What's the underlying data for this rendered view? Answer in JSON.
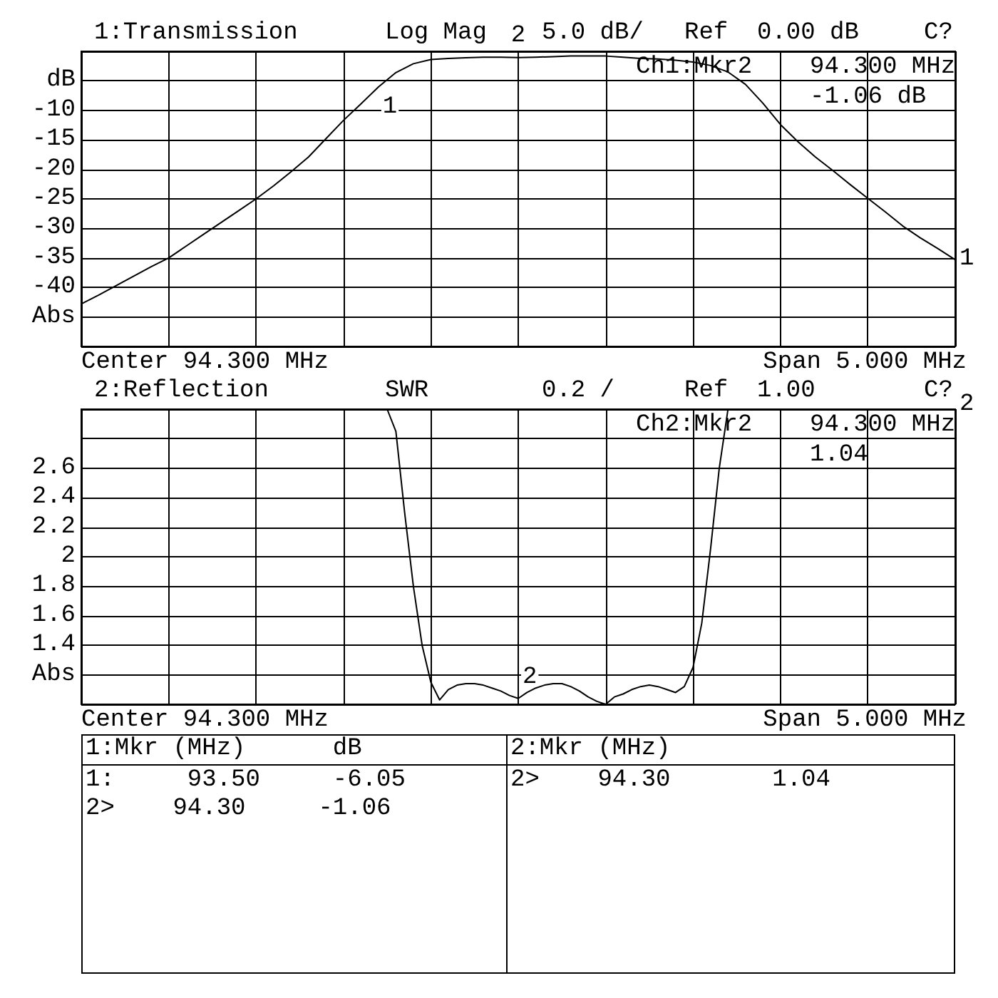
{
  "chart_data": [
    {
      "type": "line",
      "title": "1:Transmission",
      "categories": [
        null,
        null,
        null,
        null,
        null,
        null,
        null,
        null,
        null,
        null,
        null,
        null,
        null,
        null,
        null,
        null,
        null,
        null,
        null,
        null,
        null,
        null,
        null,
        null,
        null,
        null,
        null,
        null,
        null,
        null,
        null,
        null,
        null,
        null,
        null,
        null,
        null,
        null,
        null,
        null,
        null,
        null,
        null,
        null,
        null,
        null,
        null,
        null,
        null,
        null,
        null
      ],
      "ylim": [
        -50,
        0
      ],
      "yticks": [
        {
          "value": 0,
          "label": null
        },
        {
          "value": -5,
          "label": "dB"
        },
        -10,
        -15,
        -20,
        -25,
        -30,
        -35,
        -40,
        {
          "value": -45,
          "label": "Abs"
        },
        {
          "value": -50,
          "label": null
        }
      ],
      "tick_labels": "y",
      "grid": true,
      "series": [
        {
          "color": "#000000",
          "values": [
            -42.8,
            -41.3,
            -39.7,
            -38.1,
            -36.5,
            -35.0,
            -33.0,
            -31.0,
            -29.0,
            -27.0,
            -25.0,
            -22.8,
            -20.4,
            -17.9,
            -14.8,
            -11.7,
            -8.9,
            -6.05,
            -3.6,
            -2.1,
            -1.4,
            -1.2,
            -1.1,
            -1.0,
            -1.0,
            -1.06,
            -1.0,
            -0.9,
            -0.8,
            -0.8,
            -0.8,
            -1.0,
            -1.2,
            -1.3,
            -1.5,
            -1.8,
            -2.4,
            -3.5,
            -5.6,
            -8.8,
            -12.4,
            -15.3,
            -17.9,
            -20.2,
            -22.6,
            -24.9,
            -27.2,
            -29.6,
            -31.6,
            -33.4,
            -35.3
          ]
        }
      ],
      "annotations": [
        "Log Mag",
        "5.0 dB/",
        "Ref  0.00 dB",
        "C?",
        "Ch1:Mkr2",
        "94.300 MHz",
        "-1.06 dB",
        "Center 94.300 MHz",
        "Span 5.000 MHz",
        "1",
        {
          "text": "1",
          "y": -6.05
        },
        {
          "text": "2",
          "y": -1.06
        }
      ]
    },
    {
      "type": "line",
      "title": "2:Reflection",
      "categories": [
        null,
        null,
        null,
        null,
        null,
        null,
        null,
        null,
        null,
        null,
        null,
        null,
        null,
        null,
        null,
        null,
        null,
        null,
        null,
        null,
        null,
        null,
        null,
        null,
        null,
        null,
        null,
        null,
        null,
        null,
        null,
        null,
        null,
        null,
        null,
        null,
        null,
        null,
        null,
        null,
        null,
        null,
        null,
        null,
        null,
        null,
        null,
        null,
        null,
        null,
        null,
        null,
        null,
        null,
        null,
        null,
        null,
        null,
        null,
        null,
        null,
        null,
        null,
        null,
        null,
        null,
        null,
        null,
        null,
        null,
        null,
        null,
        null,
        null,
        null,
        null,
        null,
        null,
        null,
        null,
        null,
        null,
        null,
        null,
        null,
        null,
        null,
        null,
        null,
        null,
        null,
        null,
        null,
        null,
        null,
        null,
        null,
        null,
        null,
        null,
        null
      ],
      "ylim": [
        1,
        3
      ],
      "yticks": [
        {
          "value": 1,
          "label": null
        },
        {
          "value": 1.2,
          "label": "Abs"
        },
        1.4,
        1.6,
        1.8,
        2,
        2.2,
        2.4,
        2.6,
        {
          "value": 2.8,
          "label": null
        },
        {
          "value": 3,
          "label": null
        }
      ],
      "tick_labels": "y",
      "grid": true,
      "series": [
        {
          "color": "#000000",
          "values": [
            3,
            3,
            3,
            3,
            3,
            3,
            3,
            3,
            3,
            3,
            3,
            3,
            3,
            3,
            3,
            3,
            3,
            3,
            3,
            3,
            3,
            3,
            3,
            3,
            3,
            3,
            3,
            3,
            3,
            3,
            3,
            3,
            3,
            3,
            3,
            3,
            2.85,
            2.3,
            1.8,
            1.4,
            1.15,
            1.03,
            1.1,
            1.13,
            1.14,
            1.14,
            1.13,
            1.11,
            1.09,
            1.06,
            1.04,
            1.08,
            1.11,
            1.13,
            1.14,
            1.14,
            1.12,
            1.09,
            1.05,
            1.02,
            1.0,
            1.05,
            1.07,
            1.1,
            1.12,
            1.13,
            1.12,
            1.1,
            1.08,
            1.12,
            1.25,
            1.55,
            2.05,
            2.6,
            3,
            3,
            3,
            3,
            3,
            3,
            3,
            3,
            3,
            3,
            3,
            3,
            3,
            3,
            3,
            3,
            3,
            3,
            3,
            3,
            3,
            3,
            3,
            3,
            3,
            3,
            3
          ]
        }
      ],
      "annotations": [
        "SWR",
        "0.2 /",
        "Ref  1.00",
        "C?",
        "Ch2:Mkr2",
        "94.300 MHz",
        "1.04",
        "Center 94.300 MHz",
        "Span 5.000 MHz",
        "2",
        {
          "text": "2",
          "y": 1.04
        }
      ]
    },
    {
      "type": "other",
      "annotations": [
        "1:Mkr (MHz)      dB",
        "1:     93.50     -6.05",
        "2>    94.30     -1.06"
      ]
    },
    {
      "type": "other",
      "annotations": [
        "2:Mkr (MHz)",
        "2>    94.30       1.04"
      ]
    }
  ]
}
